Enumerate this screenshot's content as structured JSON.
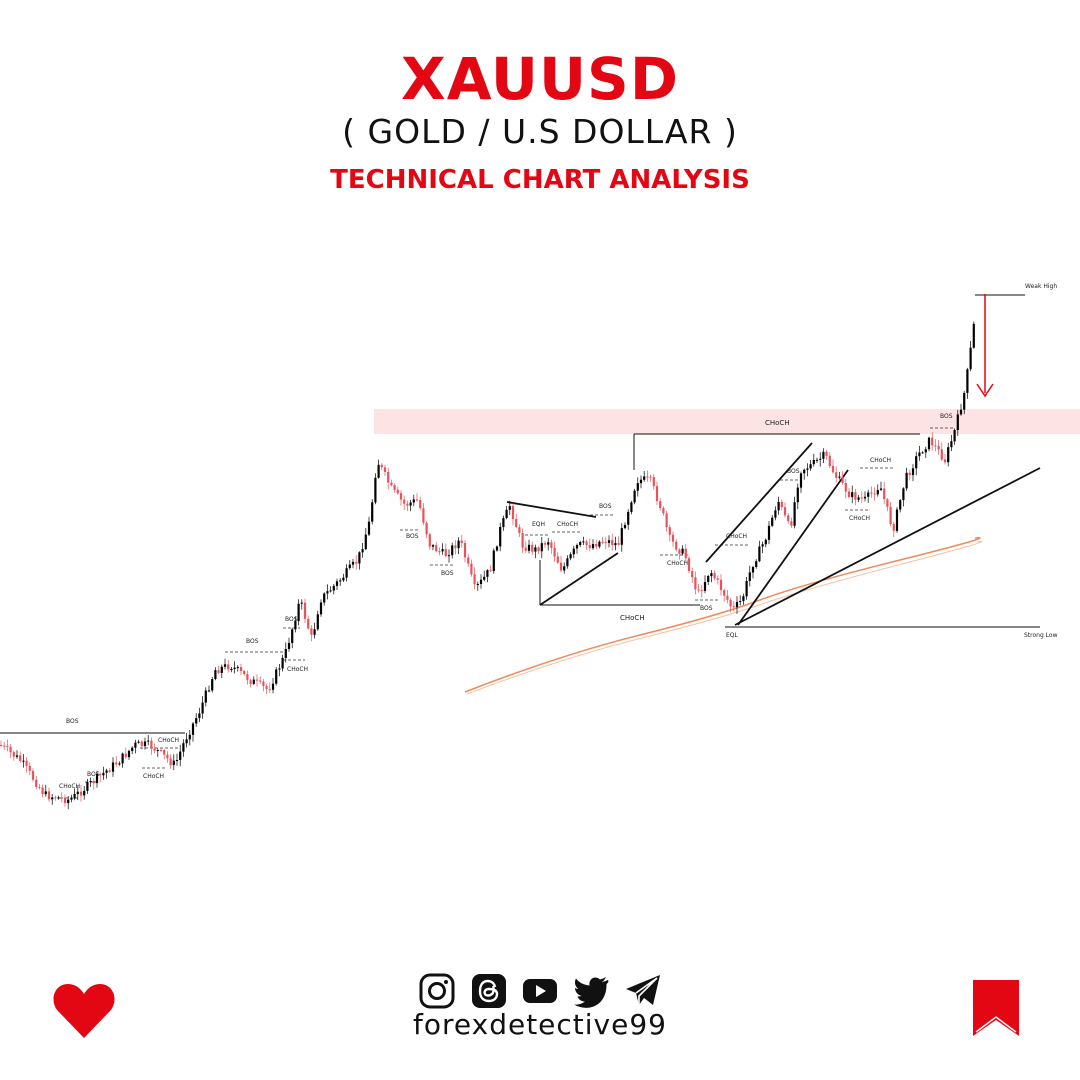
{
  "header": {
    "title": "XAUUSD",
    "subtitle": "( GOLD / U.S DOLLAR )",
    "tagline": "TECHNICAL CHART ANALYSIS"
  },
  "colors": {
    "accent": "#e30613",
    "bull_candle": "#000000",
    "bear_candle": "#e8525a",
    "zone": "#fde3e3",
    "moving_average": "#f08a5b"
  },
  "chart_data": {
    "type": "candlestick",
    "title": "",
    "xlabel": "",
    "ylabel": "",
    "legend": "none",
    "grid": false,
    "axes_visible": false,
    "trend_closes": [
      [
        0,
        745
      ],
      [
        20,
        760
      ],
      [
        45,
        795
      ],
      [
        70,
        800
      ],
      [
        95,
        780
      ],
      [
        120,
        760
      ],
      [
        135,
        745
      ],
      [
        150,
        745
      ],
      [
        175,
        765
      ],
      [
        185,
        740
      ],
      [
        200,
        710
      ],
      [
        215,
        670
      ],
      [
        230,
        665
      ],
      [
        250,
        680
      ],
      [
        268,
        690
      ],
      [
        285,
        655
      ],
      [
        300,
        600
      ],
      [
        312,
        640
      ],
      [
        320,
        600
      ],
      [
        340,
        580
      ],
      [
        358,
        560
      ],
      [
        370,
        520
      ],
      [
        377,
        460
      ],
      [
        392,
        490
      ],
      [
        405,
        505
      ],
      [
        418,
        500
      ],
      [
        430,
        545
      ],
      [
        445,
        555
      ],
      [
        460,
        540
      ],
      [
        475,
        590
      ],
      [
        490,
        570
      ],
      [
        500,
        530
      ],
      [
        510,
        505
      ],
      [
        522,
        545
      ],
      [
        535,
        550
      ],
      [
        548,
        540
      ],
      [
        562,
        570
      ],
      [
        578,
        545
      ],
      [
        590,
        545
      ],
      [
        605,
        540
      ],
      [
        618,
        545
      ],
      [
        628,
        510
      ],
      [
        637,
        480
      ],
      [
        650,
        480
      ],
      [
        660,
        505
      ],
      [
        670,
        540
      ],
      [
        685,
        555
      ],
      [
        698,
        595
      ],
      [
        710,
        570
      ],
      [
        722,
        590
      ],
      [
        733,
        610
      ],
      [
        742,
        600
      ],
      [
        752,
        565
      ],
      [
        765,
        540
      ],
      [
        778,
        500
      ],
      [
        790,
        530
      ],
      [
        800,
        470
      ],
      [
        812,
        465
      ],
      [
        825,
        455
      ],
      [
        835,
        475
      ],
      [
        850,
        495
      ],
      [
        865,
        500
      ],
      [
        880,
        485
      ],
      [
        893,
        530
      ],
      [
        905,
        480
      ],
      [
        918,
        455
      ],
      [
        930,
        440
      ],
      [
        945,
        460
      ],
      [
        955,
        430
      ],
      [
        965,
        390
      ],
      [
        972,
        340
      ],
      [
        977,
        300
      ]
    ],
    "annotations": [
      {
        "label": "BOS",
        "type": "break-of-structure"
      },
      {
        "label": "CHoCH",
        "type": "change-of-character"
      },
      {
        "label": "EQH",
        "type": "equal-highs"
      },
      {
        "label": "EQL",
        "type": "equal-lows"
      },
      {
        "label": "Weak High",
        "type": "level"
      },
      {
        "label": "Strong Low",
        "type": "level"
      }
    ],
    "supply_zone": "horizontal shaded zone just below the breakout high",
    "projection": "downward arrow from the Weak High back toward the zone"
  },
  "labels": {
    "bos": "BOS",
    "choch": "CHoCH",
    "eqh": "EQH",
    "eql": "EQL",
    "weak_high": "Weak High",
    "strong_low": "Strong Low"
  },
  "footer": {
    "handle": "forexdetective99",
    "icons": [
      "heart-icon",
      "instagram-icon",
      "threads-icon",
      "youtube-icon",
      "twitter-icon",
      "telegram-icon",
      "bookmark-icon"
    ]
  }
}
